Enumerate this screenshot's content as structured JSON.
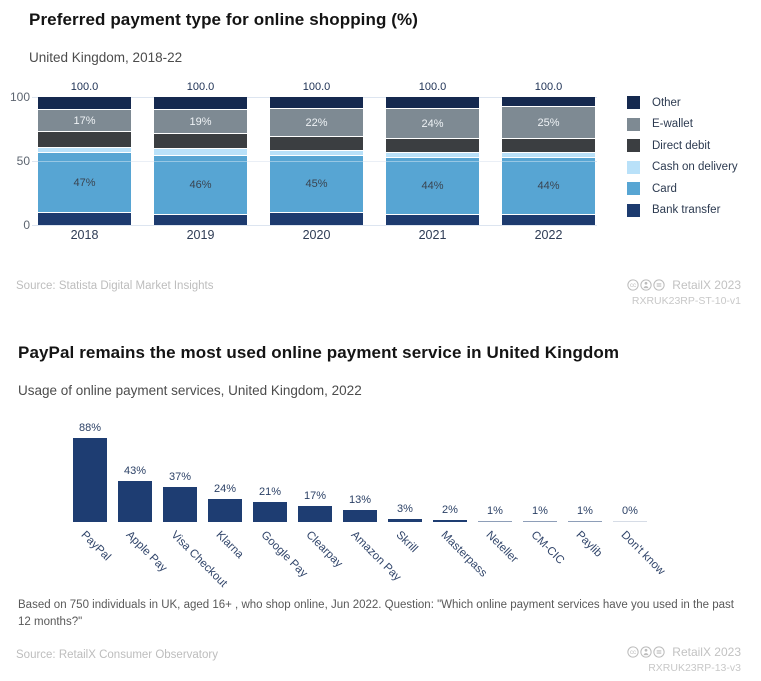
{
  "top_chart": {
    "title": "Preferred payment type for online shopping (%)",
    "subtitle": "United Kingdom, 2018-22",
    "source": "Source: Statista Digital Market Insights",
    "branding": {
      "name": "RetailX 2023",
      "ref": "RXRUK23RP-ST-10-v1",
      "license_icons": [
        "cc",
        "by",
        "nd"
      ]
    },
    "chart_data": {
      "type": "bar",
      "stacked": true,
      "categories": [
        "2018",
        "2019",
        "2020",
        "2021",
        "2022"
      ],
      "series": [
        {
          "name": "Other",
          "color": "#15294f",
          "values": [
            10,
            10,
            9,
            9,
            8
          ]
        },
        {
          "name": "E-wallet",
          "color": "#7e8a93",
          "values": [
            17,
            19,
            22,
            24,
            25
          ]
        },
        {
          "name": "Direct debit",
          "color": "#3b3e41",
          "values": [
            13,
            12,
            11,
            11,
            11
          ]
        },
        {
          "name": "Cash on delivery",
          "color": "#b9e1f9",
          "values": [
            4,
            5,
            4,
            4,
            4
          ]
        },
        {
          "name": "Card",
          "color": "#57a5d3",
          "values": [
            47,
            46,
            45,
            44,
            44
          ]
        },
        {
          "name": "Bank transfer",
          "color": "#1d3b6f",
          "values": [
            9,
            8,
            9,
            8,
            8
          ]
        }
      ],
      "totals": [
        "100.0",
        "100.0",
        "100.0",
        "100.0",
        "100.0"
      ],
      "labeled_series": [
        "E-wallet",
        "Card"
      ],
      "label_colors": {
        "E-wallet": "#eef2f5",
        "Card": "#3a4450"
      },
      "ylim": [
        0,
        100
      ],
      "yticks": [
        0,
        50,
        100
      ],
      "grid": true,
      "legend_position": "right"
    }
  },
  "bottom_chart": {
    "title": "PayPal remains the most used online payment service in United Kingdom",
    "subtitle": "Usage of online payment services, United Kingdom, 2022",
    "footnote": "Based on 750 individuals in UK, aged 16+ , who shop online, Jun 2022. Question: \"Which online payment services have you used in the past 12 months?\"",
    "source": "Source: RetailX Consumer Observatory",
    "branding": {
      "name": "RetailX 2023",
      "ref": "RXRUK23RP-13-v3",
      "license_icons": [
        "cc",
        "by",
        "nd"
      ]
    },
    "chart_data": {
      "type": "bar",
      "categories": [
        "PayPal",
        "Apple Pay",
        "Visa Checkout",
        "Klarna",
        "Google Pay",
        "Clearpay",
        "Amazon Pay",
        "Skrill",
        "Masterpass",
        "Neteller",
        "CM-CIC",
        "Paylib",
        "Don't know"
      ],
      "values": [
        88,
        43,
        37,
        24,
        21,
        17,
        13,
        3,
        2,
        1,
        1,
        1,
        0
      ],
      "value_labels": [
        "88%",
        "43%",
        "37%",
        "24%",
        "21%",
        "17%",
        "13%",
        "3%",
        "2%",
        "1%",
        "1%",
        "1%",
        "0%"
      ],
      "bar_color": "#1e3d72",
      "ylim": [
        0,
        100
      ],
      "grid": false,
      "legend_position": "none"
    }
  }
}
